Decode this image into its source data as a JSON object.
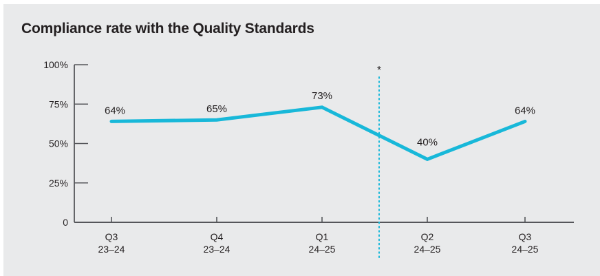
{
  "chart_data": {
    "type": "line",
    "title": "Compliance rate with the Quality Standards",
    "categories": [
      "Q3 23–24",
      "Q4 23–24",
      "Q1 24–25",
      "Q2 24–25",
      "Q3 24–25"
    ],
    "category_lines": [
      [
        "Q3",
        "23–24"
      ],
      [
        "Q4",
        "23–24"
      ],
      [
        "Q1",
        "24–25"
      ],
      [
        "Q2",
        "24–25"
      ],
      [
        "Q3",
        "24–25"
      ]
    ],
    "values": [
      64,
      65,
      73,
      40,
      64
    ],
    "data_labels": [
      "64%",
      "65%",
      "73%",
      "40%",
      "64%"
    ],
    "ylim": [
      0,
      100
    ],
    "yticks": [
      {
        "value": 100,
        "label": "100%"
      },
      {
        "value": 75,
        "label": "75%"
      },
      {
        "value": 50,
        "label": "50%"
      },
      {
        "value": 25,
        "label": "25%"
      },
      {
        "value": 0,
        "label": "0"
      }
    ],
    "grid": false,
    "legend": "none",
    "annotation": {
      "symbol": "*",
      "type": "dotted-vertical-line",
      "between_categories": [
        "Q1 24–25",
        "Q2 24–25"
      ]
    },
    "colors": {
      "line": "#18b8d9",
      "annotation_line": "#18b8d9",
      "axis": "#55565a",
      "text": "#231f20",
      "panel_background": "#e9eaeb",
      "page_background": "#ffffff"
    }
  }
}
